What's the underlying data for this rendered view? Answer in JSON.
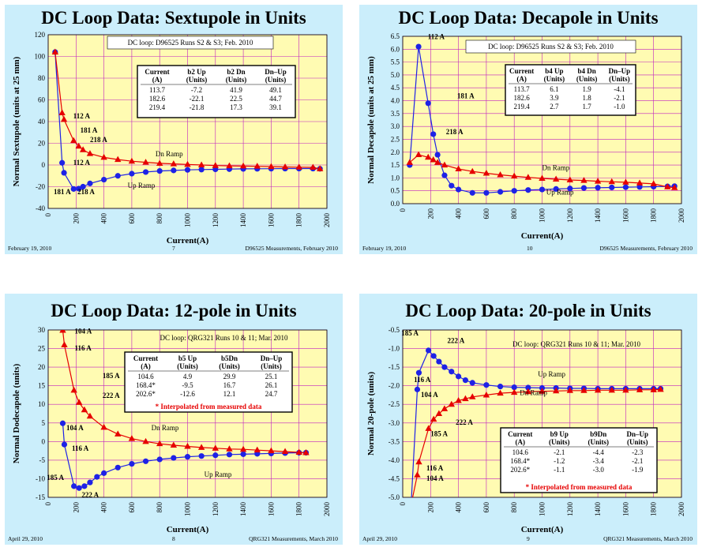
{
  "slides": [
    {
      "title": "DC Loop Data: Sextupole in Units",
      "footer_left": "February 19, 2010",
      "footer_center": "7",
      "footer_right": "D96525 Measurements, February 2010"
    },
    {
      "title": "DC Loop Data: Decapole in Units",
      "footer_left": "February 19, 2010",
      "footer_center": "10",
      "footer_right": "D96525 Measurements, February 2010"
    },
    {
      "title": "DC Loop Data: 12-pole in Units",
      "footer_left": "April 29, 2010",
      "footer_center": "8",
      "footer_right": "QRG321 Measurements, March 2010"
    },
    {
      "title": "DC Loop Data: 20-pole in Units",
      "footer_left": "April 29, 2010",
      "footer_center": "9",
      "footer_right": "QRG321 Measurements, March 2010"
    }
  ],
  "chart_data": [
    {
      "type": "line",
      "xlabel": "Current(A)",
      "ylabel": "Normal Sextupole (units at 25 mm)",
      "xlim": [
        0,
        2000
      ],
      "ylim": [
        -40,
        120
      ],
      "xticks": [
        0,
        200,
        400,
        600,
        800,
        1000,
        1200,
        1400,
        1600,
        1800,
        2000
      ],
      "yticks": [
        -40,
        -20,
        0,
        20,
        40,
        60,
        80,
        100,
        120
      ],
      "ytick_labels": [
        "-40",
        "-20",
        "0",
        "20",
        "40",
        "60",
        "80",
        "100",
        "120"
      ],
      "grid": true,
      "note": "DC loop: D96525 Runs S2 & S3; Feb. 2010",
      "table": {
        "headers": [
          [
            "Current",
            "(A)"
          ],
          [
            "b2 Up",
            "(Units)"
          ],
          [
            "b2 Dn",
            "(Units)"
          ],
          [
            "Dn–Up",
            "(Units)"
          ]
        ],
        "rows": [
          [
            "113.7",
            "-7.2",
            "41.9",
            "49.1"
          ],
          [
            "182.6",
            "-22.1",
            "22.5",
            "44.7"
          ],
          [
            "219.4",
            "-21.8",
            "17.3",
            "39.1"
          ]
        ],
        "footnote": ""
      },
      "series": [
        {
          "name": "Up Ramp",
          "color": "#1e22e6",
          "marker": "circle",
          "x": [
            50,
            100,
            113.7,
            182.6,
            219.4,
            250,
            300,
            400,
            500,
            600,
            700,
            800,
            900,
            1000,
            1100,
            1200,
            1300,
            1400,
            1500,
            1600,
            1700,
            1800,
            1900,
            1950
          ],
          "y": [
            104,
            2,
            -7.2,
            -22.1,
            -21.8,
            -20,
            -17,
            -13.5,
            -10,
            -8,
            -6.5,
            -5.5,
            -5,
            -4.5,
            -4.2,
            -4,
            -3.8,
            -3.6,
            -3.5,
            -3.4,
            -3.3,
            -3.3,
            -3.3,
            -3.5
          ]
        },
        {
          "name": "Dn Ramp",
          "color": "#e60000",
          "marker": "triangle",
          "x": [
            50,
            100,
            113.7,
            182.6,
            219.4,
            250,
            300,
            400,
            500,
            600,
            700,
            800,
            900,
            1000,
            1100,
            1200,
            1300,
            1400,
            1500,
            1600,
            1700,
            1800,
            1900,
            1950
          ],
          "y": [
            104,
            48,
            41.9,
            22.5,
            17.3,
            14,
            10.5,
            7,
            5,
            3.5,
            2.5,
            1.5,
            1,
            0.5,
            0,
            -0.5,
            -0.8,
            -1,
            -1.2,
            -1.5,
            -1.8,
            -2,
            -2.2,
            -3.5
          ]
        }
      ],
      "annotations": [
        {
          "text": "112 A",
          "x": 180,
          "y": 43
        },
        {
          "text": "181 A",
          "x": 230,
          "y": 30
        },
        {
          "text": "218 A",
          "x": 300,
          "y": 21
        },
        {
          "text": "Dn Ramp",
          "x": 770,
          "y": 8
        },
        {
          "text": "112 A",
          "x": 180,
          "y": 0
        },
        {
          "text": "181 A",
          "x": 40,
          "y": -27
        },
        {
          "text": "218 A",
          "x": 210,
          "y": -27
        },
        {
          "text": "Up Ramp",
          "x": 570,
          "y": -21
        }
      ]
    },
    {
      "type": "line",
      "xlabel": "Current(A)",
      "ylabel": "Normal Decapole (units at 25 mm)",
      "xlim": [
        0,
        2000
      ],
      "ylim": [
        0,
        6.5
      ],
      "xticks": [
        0,
        200,
        400,
        600,
        800,
        1000,
        1200,
        1400,
        1600,
        1800,
        2000
      ],
      "yticks": [
        0,
        0.5,
        1,
        1.5,
        2,
        2.5,
        3,
        3.5,
        4,
        4.5,
        5,
        5.5,
        6,
        6.5
      ],
      "ytick_labels": [
        "0.0",
        "0.5",
        "1.0",
        "1.5",
        "2.0",
        "2.5",
        "3.0",
        "3.5",
        "4.0",
        "4.5",
        "5.0",
        "5.5",
        "6.0",
        "6.5"
      ],
      "grid": true,
      "note": "DC loop: D96525 Runs S2 & S3; Feb. 2010",
      "table": {
        "headers": [
          [
            "Current",
            "(A)"
          ],
          [
            "b4 Up",
            "(Units)"
          ],
          [
            "b4 Dn",
            "(Units)"
          ],
          [
            "Dn–Up",
            "(Units)"
          ]
        ],
        "rows": [
          [
            "113.7",
            "6.1",
            "1.9",
            "-4.1"
          ],
          [
            "182.6",
            "3.9",
            "1.8",
            "-2.1"
          ],
          [
            "219.4",
            "2.7",
            "1.7",
            "-1.0"
          ]
        ],
        "footnote": ""
      },
      "series": [
        {
          "name": "Up Ramp",
          "color": "#1e22e6",
          "marker": "circle",
          "x": [
            50,
            113.7,
            182.6,
            219.4,
            250,
            300,
            350,
            400,
            500,
            600,
            700,
            800,
            900,
            1000,
            1100,
            1200,
            1300,
            1400,
            1500,
            1600,
            1700,
            1800,
            1900,
            1950
          ],
          "y": [
            1.5,
            6.1,
            3.9,
            2.7,
            1.9,
            1.1,
            0.7,
            0.55,
            0.42,
            0.42,
            0.46,
            0.5,
            0.53,
            0.55,
            0.57,
            0.59,
            0.61,
            0.62,
            0.63,
            0.64,
            0.65,
            0.66,
            0.67,
            0.68
          ]
        },
        {
          "name": "Dn Ramp",
          "color": "#e60000",
          "marker": "triangle",
          "x": [
            50,
            113.7,
            182.6,
            219.4,
            250,
            300,
            400,
            500,
            600,
            700,
            800,
            900,
            1000,
            1100,
            1200,
            1300,
            1400,
            1500,
            1600,
            1700,
            1800,
            1900,
            1950
          ],
          "y": [
            1.6,
            1.9,
            1.8,
            1.7,
            1.6,
            1.5,
            1.35,
            1.25,
            1.18,
            1.12,
            1.07,
            1.02,
            0.98,
            0.95,
            0.92,
            0.9,
            0.87,
            0.85,
            0.83,
            0.8,
            0.77,
            0.65,
            0.62
          ]
        }
      ],
      "annotations": [
        {
          "text": "112 A",
          "x": 180,
          "y": 6.4
        },
        {
          "text": "181 A",
          "x": 390,
          "y": 4.1
        },
        {
          "text": "218 A",
          "x": 310,
          "y": 2.7
        },
        {
          "text": "Dn Ramp",
          "x": 1000,
          "y": 1.3
        },
        {
          "text": "Up Ramp",
          "x": 1030,
          "y": 0.35
        }
      ]
    },
    {
      "type": "line",
      "xlabel": "Current(A)",
      "ylabel": "Normal Dodecapole (units)",
      "xlim": [
        0,
        2000
      ],
      "ylim": [
        -15,
        30
      ],
      "xticks": [
        0,
        200,
        400,
        600,
        800,
        1000,
        1200,
        1400,
        1600,
        1800,
        2000
      ],
      "yticks": [
        -15,
        -10,
        -5,
        0,
        5,
        10,
        15,
        20,
        25,
        30
      ],
      "ytick_labels": [
        "-15",
        "-10",
        "-5",
        "0",
        "5",
        "10",
        "15",
        "20",
        "25",
        "30"
      ],
      "grid": true,
      "note": "DC loop: QRG321 Runs 10 & 11; Mar. 2010",
      "table": {
        "headers": [
          [
            "Current",
            "(A)"
          ],
          [
            "b5 Up",
            "(Units)"
          ],
          [
            "b5Dn",
            "(Units)"
          ],
          [
            "Dn–Up",
            "(Units)"
          ]
        ],
        "rows": [
          [
            "104.6",
            "4.9",
            "29.9",
            "25.1"
          ],
          [
            "168.4*",
            "-9.5",
            "16.7",
            "26.1"
          ],
          [
            "202.6*",
            "-12.6",
            "12.1",
            "24.7"
          ]
        ],
        "footnote": "* Interpolated from measured data"
      },
      "series": [
        {
          "name": "Up Ramp",
          "color": "#1e22e6",
          "marker": "circle",
          "x": [
            104.6,
            116,
            185,
            222,
            260,
            300,
            350,
            400,
            500,
            600,
            700,
            800,
            900,
            1000,
            1100,
            1200,
            1300,
            1400,
            1500,
            1600,
            1700,
            1800,
            1850
          ],
          "y": [
            4.9,
            -0.8,
            -12,
            -12.5,
            -12,
            -11,
            -9.5,
            -8.5,
            -7,
            -6,
            -5.3,
            -4.8,
            -4.4,
            -4.1,
            -3.9,
            -3.7,
            -3.5,
            -3.4,
            -3.3,
            -3.2,
            -3.1,
            -3.0,
            -3.0
          ]
        },
        {
          "name": "Dn Ramp",
          "color": "#e60000",
          "marker": "triangle",
          "x": [
            104.6,
            116,
            185,
            222,
            260,
            300,
            400,
            500,
            600,
            700,
            800,
            900,
            1000,
            1100,
            1200,
            1300,
            1400,
            1500,
            1600,
            1700,
            1800,
            1850
          ],
          "y": [
            29.9,
            26,
            13.8,
            10.5,
            8.5,
            6.8,
            3.8,
            2.0,
            0.8,
            0,
            -0.6,
            -1.0,
            -1.3,
            -1.6,
            -1.8,
            -2.0,
            -2.1,
            -2.3,
            -2.5,
            -2.7,
            -2.9,
            -3.0
          ]
        }
      ],
      "annotations": [
        {
          "text": "104 A",
          "x": 190,
          "y": 29
        },
        {
          "text": "116 A",
          "x": 190,
          "y": 24.5
        },
        {
          "text": "185 A",
          "x": 390,
          "y": 17
        },
        {
          "text": "222 A",
          "x": 390,
          "y": 11.7
        },
        {
          "text": "104 A",
          "x": 130,
          "y": 3
        },
        {
          "text": "Dn Ramp",
          "x": 740,
          "y": 3
        },
        {
          "text": "116 A",
          "x": 170,
          "y": -2.5
        },
        {
          "text": "185 A",
          "x": -10,
          "y": -10.3
        },
        {
          "text": "Up Ramp",
          "x": 1120,
          "y": -9.5
        },
        {
          "text": "222 A",
          "x": 240,
          "y": -15
        }
      ]
    },
    {
      "type": "line",
      "xlabel": "Current(A)",
      "ylabel": "Normal 20-pole (units)",
      "xlim": [
        0,
        2000
      ],
      "ylim": [
        -5,
        -0.5
      ],
      "xticks": [
        0,
        200,
        400,
        600,
        800,
        1000,
        1200,
        1400,
        1600,
        1800,
        2000
      ],
      "yticks": [
        -5,
        -4.5,
        -4,
        -3.5,
        -3,
        -2.5,
        -2,
        -1.5,
        -1,
        -0.5
      ],
      "ytick_labels": [
        "-5.0",
        "-4.5",
        "-4.0",
        "-3.5",
        "-3.0",
        "-2.5",
        "-2.0",
        "-1.5",
        "-1.0",
        "-0.5"
      ],
      "grid": true,
      "note": "DC loop: QRG321 Runs 10 & 11; Mar. 2010",
      "table": {
        "headers": [
          [
            "Current",
            "(A)"
          ],
          [
            "b9 Up",
            "(Units)"
          ],
          [
            "b9Dn",
            "(Units)"
          ],
          [
            "Dn–Up",
            "(Units)"
          ]
        ],
        "rows": [
          [
            "104.6",
            "-2.1",
            "-4.4",
            "-2.3"
          ],
          [
            "168.4*",
            "-1.2",
            "-3.4",
            "-2.1"
          ],
          [
            "202.6*",
            "-1.1",
            "-3.0",
            "-1.9"
          ]
        ],
        "footnote": "* Interpolated from measured data"
      },
      "series": [
        {
          "name": "Up Ramp",
          "color": "#1e22e6",
          "marker": "circle",
          "x": [
            60,
            104.6,
            116,
            185,
            222,
            260,
            300,
            350,
            400,
            450,
            500,
            600,
            700,
            800,
            900,
            1000,
            1100,
            1200,
            1300,
            1400,
            1500,
            1600,
            1700,
            1800,
            1850
          ],
          "y": [
            -5.2,
            -2.1,
            -1.65,
            -1.05,
            -1.2,
            -1.35,
            -1.5,
            -1.62,
            -1.75,
            -1.85,
            -1.92,
            -1.98,
            -2.02,
            -2.04,
            -2.05,
            -2.06,
            -2.06,
            -2.07,
            -2.07,
            -2.08,
            -2.08,
            -2.08,
            -2.08,
            -2.08,
            -2.08
          ]
        },
        {
          "name": "Dn Ramp",
          "color": "#e60000",
          "marker": "triangle",
          "x": [
            60,
            104.6,
            116,
            185,
            222,
            260,
            300,
            350,
            400,
            450,
            500,
            600,
            700,
            800,
            900,
            1000,
            1100,
            1200,
            1300,
            1400,
            1500,
            1600,
            1700,
            1800,
            1850
          ],
          "y": [
            -5.2,
            -4.4,
            -4.05,
            -3.15,
            -2.9,
            -2.75,
            -2.62,
            -2.5,
            -2.4,
            -2.35,
            -2.3,
            -2.25,
            -2.2,
            -2.18,
            -2.16,
            -2.15,
            -2.14,
            -2.13,
            -2.13,
            -2.12,
            -2.12,
            -2.12,
            -2.11,
            -2.11,
            -2.1
          ]
        }
      ],
      "annotations": [
        {
          "text": "185 A",
          "x": -10,
          "y": -0.65
        },
        {
          "text": "222 A",
          "x": 320,
          "y": -0.85
        },
        {
          "text": "116 A",
          "x": 80,
          "y": -1.9
        },
        {
          "text": "104 A",
          "x": 130,
          "y": -2.3
        },
        {
          "text": "Up Ramp",
          "x": 970,
          "y": -1.75
        },
        {
          "text": "Dn Ramp",
          "x": 840,
          "y": -2.25
        },
        {
          "text": "222 A",
          "x": 380,
          "y": -3.05
        },
        {
          "text": "185 A",
          "x": 200,
          "y": -3.35
        },
        {
          "text": "116 A",
          "x": 170,
          "y": -4.28
        },
        {
          "text": "104 A",
          "x": 170,
          "y": -4.55
        }
      ]
    }
  ]
}
